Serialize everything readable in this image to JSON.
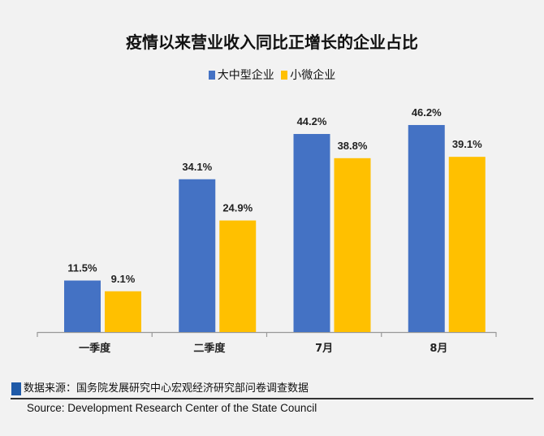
{
  "chart_data": {
    "type": "bar",
    "title": "疫情以来营业收入同比正增长的企业占比",
    "categories": [
      "一季度",
      "二季度",
      "7月",
      "8月"
    ],
    "series": [
      {
        "name": "大中型企业",
        "values": [
          11.5,
          34.1,
          44.2,
          46.2
        ],
        "labels": [
          "11.5%",
          "34.1%",
          "44.2%",
          "46.2%"
        ],
        "color": "#4472C4"
      },
      {
        "name": "小微企业",
        "values": [
          9.1,
          24.9,
          38.8,
          39.1
        ],
        "labels": [
          "9.1%",
          "24.9%",
          "38.8%",
          "39.1%"
        ],
        "color": "#FFC000"
      }
    ],
    "unit": "%",
    "ylim": [
      0,
      50
    ],
    "grid": false,
    "legend_position": "top"
  },
  "source_cn": "数据来源：国务院发展研究中心宏观经济研究部问卷调查数据",
  "source_en": "Source: Development Research Center of the State Council"
}
